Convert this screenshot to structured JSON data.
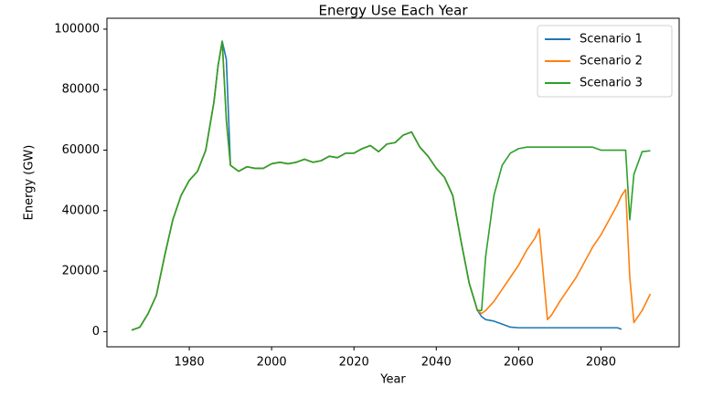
{
  "chart_data": {
    "type": "line",
    "title": "Energy Use Each Year",
    "x_label": "Year",
    "y_label": "Energy (GW)",
    "x": [
      1966,
      1968,
      1970,
      1972,
      1974,
      1976,
      1978,
      1980,
      1982,
      1984,
      1986,
      1987,
      1988,
      1989,
      1990,
      1992,
      1994,
      1996,
      1998,
      2000,
      2002,
      2004,
      2006,
      2008,
      2010,
      2012,
      2014,
      2016,
      2018,
      2020,
      2022,
      2024,
      2026,
      2028,
      2030,
      2032,
      2034,
      2036,
      2038,
      2040,
      2042,
      2044,
      2046,
      2048,
      2050,
      2051,
      2052,
      2054,
      2056,
      2058,
      2060,
      2062,
      2064,
      2065,
      2067,
      2068,
      2070,
      2072,
      2074,
      2076,
      2078,
      2080,
      2082,
      2084,
      2085,
      2086,
      2087,
      2088,
      2090,
      2092
    ],
    "series": [
      {
        "name": "Scenario 1",
        "color": "#1f77b4",
        "values": [
          500,
          1500,
          6000,
          12000,
          25000,
          37000,
          45000,
          50000,
          53000,
          60000,
          76000,
          88000,
          96000,
          90000,
          55000,
          53000,
          54500,
          54000,
          54000,
          55500,
          56000,
          55500,
          56000,
          57000,
          56000,
          56500,
          58000,
          57500,
          59000,
          59000,
          60500,
          61500,
          59500,
          62000,
          62500,
          65000,
          66000,
          61000,
          58000,
          54000,
          51000,
          45000,
          30000,
          16000,
          7000,
          5000,
          4000,
          3500,
          2500,
          1500,
          1300,
          1300,
          1300,
          1300,
          1300,
          1300,
          1300,
          1300,
          1300,
          1300,
          1300,
          1300,
          1300,
          1300,
          800,
          null,
          null,
          null,
          null,
          null
        ]
      },
      {
        "name": "Scenario 2",
        "color": "#ff7f0e",
        "values": [
          500,
          1500,
          6000,
          12000,
          25000,
          37000,
          45000,
          50000,
          53000,
          60000,
          76000,
          88000,
          96000,
          70000,
          55000,
          53000,
          54500,
          54000,
          54000,
          55500,
          56000,
          55500,
          56000,
          57000,
          56000,
          56500,
          58000,
          57500,
          59000,
          59000,
          60500,
          61500,
          59500,
          62000,
          62500,
          65000,
          66000,
          61000,
          58000,
          54000,
          51000,
          45000,
          30000,
          16000,
          7000,
          6000,
          7000,
          10000,
          14000,
          18000,
          22000,
          27000,
          31000,
          34000,
          4000,
          5500,
          10000,
          14000,
          18000,
          23000,
          28000,
          32000,
          37000,
          42000,
          45000,
          47000,
          18000,
          3000,
          7000,
          12500
        ]
      },
      {
        "name": "Scenario 3",
        "color": "#2ca02c",
        "values": [
          500,
          1500,
          6000,
          12000,
          25000,
          37000,
          45000,
          50000,
          53000,
          60000,
          76000,
          88000,
          96000,
          70000,
          55000,
          53000,
          54500,
          54000,
          54000,
          55500,
          56000,
          55500,
          56000,
          57000,
          56000,
          56500,
          58000,
          57500,
          59000,
          59000,
          60500,
          61500,
          59500,
          62000,
          62500,
          65000,
          66000,
          61000,
          58000,
          54000,
          51000,
          45000,
          30000,
          16000,
          7000,
          7000,
          25000,
          45000,
          55000,
          59000,
          60500,
          61000,
          61000,
          61000,
          61000,
          61000,
          61000,
          61000,
          61000,
          61000,
          61000,
          60000,
          60000,
          60000,
          60000,
          60000,
          37000,
          52000,
          59500,
          59800
        ]
      }
    ],
    "xlim": [
      1960,
      2099
    ],
    "xticks": [
      1980,
      2000,
      2020,
      2040,
      2060,
      2080
    ],
    "ylim": [
      -5000,
      103600
    ],
    "yticks": [
      0,
      20000,
      40000,
      60000,
      80000,
      100000
    ],
    "legend": "upper right"
  }
}
